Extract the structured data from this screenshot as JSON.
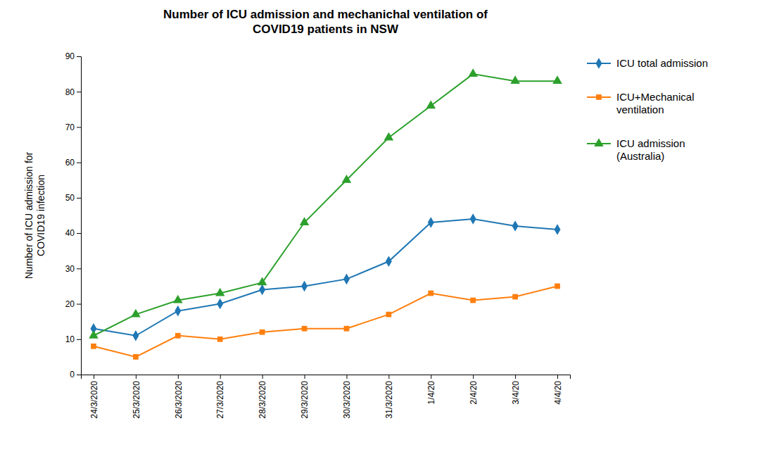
{
  "chart_data": {
    "type": "line",
    "title": "Number of ICU admission and mechanichal ventilation of\nCOVID19 patients in NSW",
    "y_label": "Number of ICU admission for\nCOVID19 infection",
    "categories": [
      "24/3/2020",
      "25/3/2020",
      "26/3/2020",
      "27/3/2020",
      "28/3/2020",
      "29/3/2020",
      "30/3/2020",
      "31/3/2020",
      "1/4/20",
      "2/4/20",
      "3/4/20",
      "4/4/20"
    ],
    "series": [
      {
        "name": "ICU total admission",
        "marker": "diamond",
        "values": [
          13,
          11,
          18,
          20,
          24,
          25,
          27,
          32,
          43,
          44,
          42,
          41
        ]
      },
      {
        "name": "ICU+Mechanical\nventilation",
        "marker": "square",
        "values": [
          8,
          5,
          11,
          10,
          12,
          13,
          13,
          17,
          23,
          21,
          22,
          25
        ]
      },
      {
        "name": "ICU admission\n(Australia)",
        "marker": "triangle",
        "values": [
          11,
          17,
          21,
          23,
          26,
          43,
          55,
          67,
          76,
          85,
          83,
          83
        ]
      }
    ],
    "ylim": [
      0,
      90
    ],
    "yticks": [
      0,
      10,
      20,
      30,
      40,
      50,
      60,
      70,
      80,
      90
    ],
    "grid": false,
    "legend": "right"
  }
}
